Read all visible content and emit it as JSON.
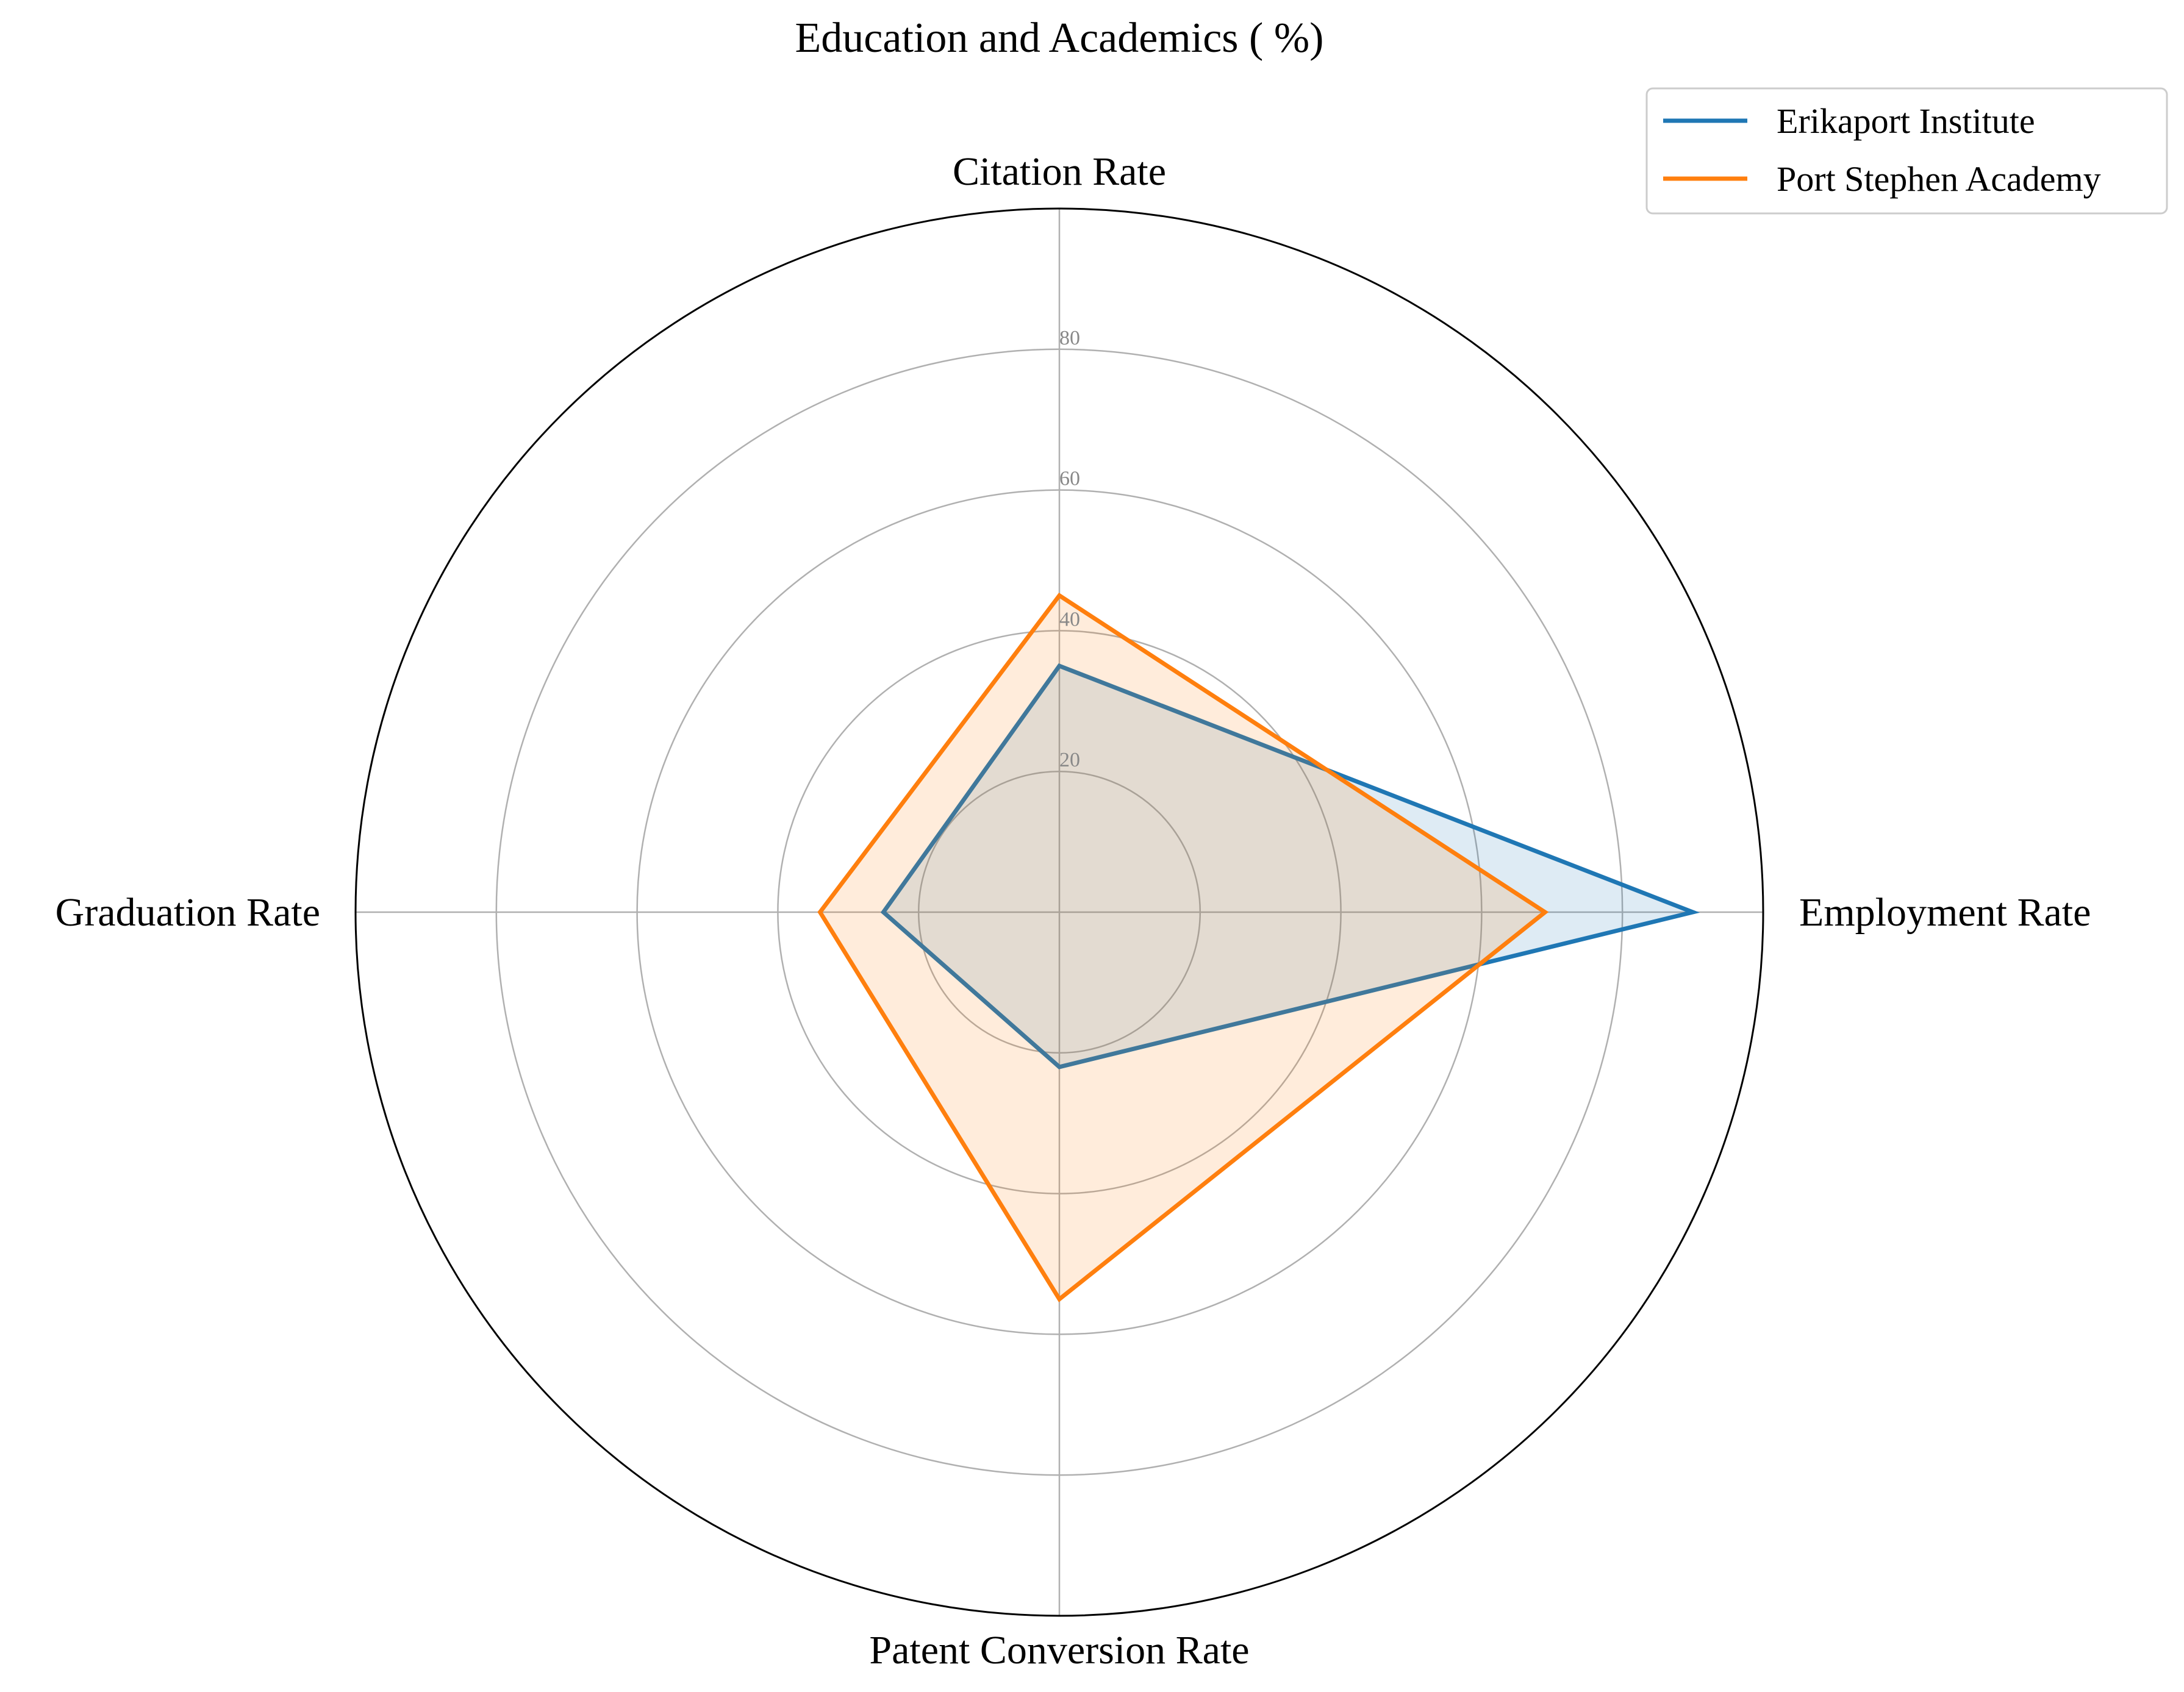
{
  "chart_data": {
    "type": "radar",
    "title": "Education and Academics ( %)",
    "axes": [
      "Citation Rate",
      "Employment Rate",
      "Patent Conversion Rate",
      "Graduation Rate"
    ],
    "r_ticks": [
      "20",
      "40",
      "60",
      "80"
    ],
    "r_tick_values": [
      20,
      40,
      60,
      80
    ],
    "rlim": [
      0,
      100
    ],
    "grid": true,
    "legend_position": "top-right",
    "series": [
      {
        "name": "Erikaport Institute",
        "values": [
          35,
          90,
          22,
          25
        ],
        "color": "#1f77b4"
      },
      {
        "name": "Port Stephen Academy",
        "values": [
          45,
          69,
          55,
          34
        ],
        "color": "#ff7f0e"
      }
    ]
  }
}
